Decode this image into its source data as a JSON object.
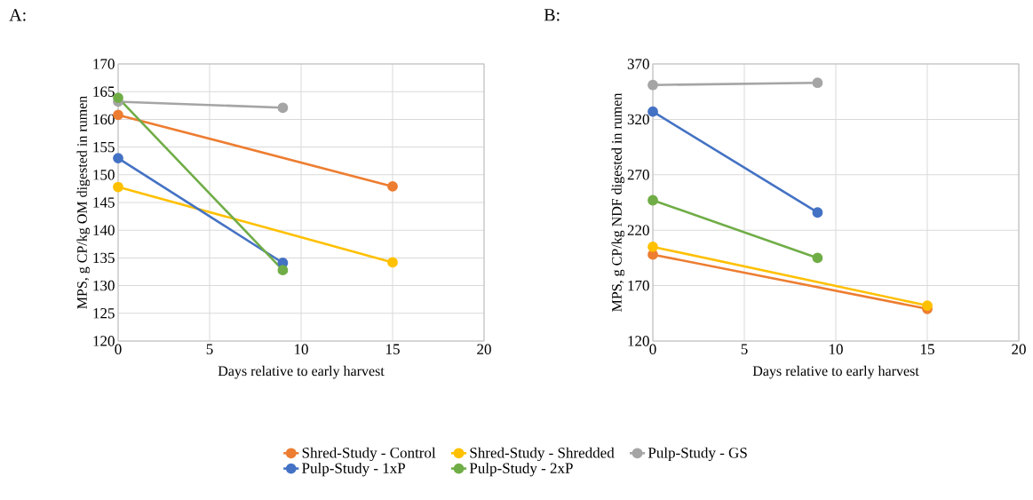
{
  "chart_data": [
    {
      "type": "line",
      "title": "A:",
      "xlabel": "Days relative to early harvest",
      "ylabel": "MPS, g CP/kg OM digested in rumen",
      "xlim": [
        0,
        20
      ],
      "xticks": [
        0,
        5,
        10,
        15,
        20
      ],
      "ylim": [
        120,
        170
      ],
      "yticks": [
        120,
        125,
        130,
        135,
        140,
        145,
        150,
        155,
        160,
        165,
        170
      ],
      "grid": true,
      "marker": "circle",
      "legend": "bottom",
      "series": [
        {
          "name": "Shred-Study - Control",
          "color": "#ed7d31",
          "x": [
            0,
            15
          ],
          "values": [
            160.8,
            147.9
          ]
        },
        {
          "name": "Shred-Study - Shredded",
          "color": "#ffc000",
          "x": [
            0,
            15
          ],
          "values": [
            147.8,
            134.2
          ]
        },
        {
          "name": "Pulp-Study - GS",
          "color": "#a5a5a5",
          "x": [
            0,
            9
          ],
          "values": [
            163.2,
            162.1
          ]
        },
        {
          "name": "Pulp-Study - 1xP",
          "color": "#4472c4",
          "x": [
            0,
            9
          ],
          "values": [
            153.0,
            134.1
          ]
        },
        {
          "name": "Pulp-Study - 2xP",
          "color": "#70ad47",
          "x": [
            0,
            9
          ],
          "values": [
            163.9,
            132.8
          ]
        }
      ]
    },
    {
      "type": "line",
      "title": "B:",
      "xlabel": "Days relative to early harvest",
      "ylabel": "MPS, g CP/kg NDF digested in rumen",
      "xlim": [
        0,
        20
      ],
      "xticks": [
        0,
        5,
        10,
        15,
        20
      ],
      "ylim": [
        120,
        370
      ],
      "yticks": [
        120,
        170,
        220,
        270,
        320,
        370
      ],
      "grid": true,
      "marker": "circle",
      "series": [
        {
          "color": "#ed7d31",
          "x": [
            0,
            15
          ],
          "values": [
            198,
            149
          ]
        },
        {
          "color": "#ffc000",
          "x": [
            0,
            15
          ],
          "values": [
            205,
            152
          ]
        },
        {
          "color": "#a5a5a5",
          "x": [
            0,
            9
          ],
          "values": [
            351,
            353
          ]
        },
        {
          "color": "#4472c4",
          "x": [
            0,
            9
          ],
          "values": [
            327,
            236
          ]
        },
        {
          "color": "#70ad47",
          "x": [
            0,
            9
          ],
          "values": [
            247,
            195
          ]
        }
      ]
    }
  ]
}
